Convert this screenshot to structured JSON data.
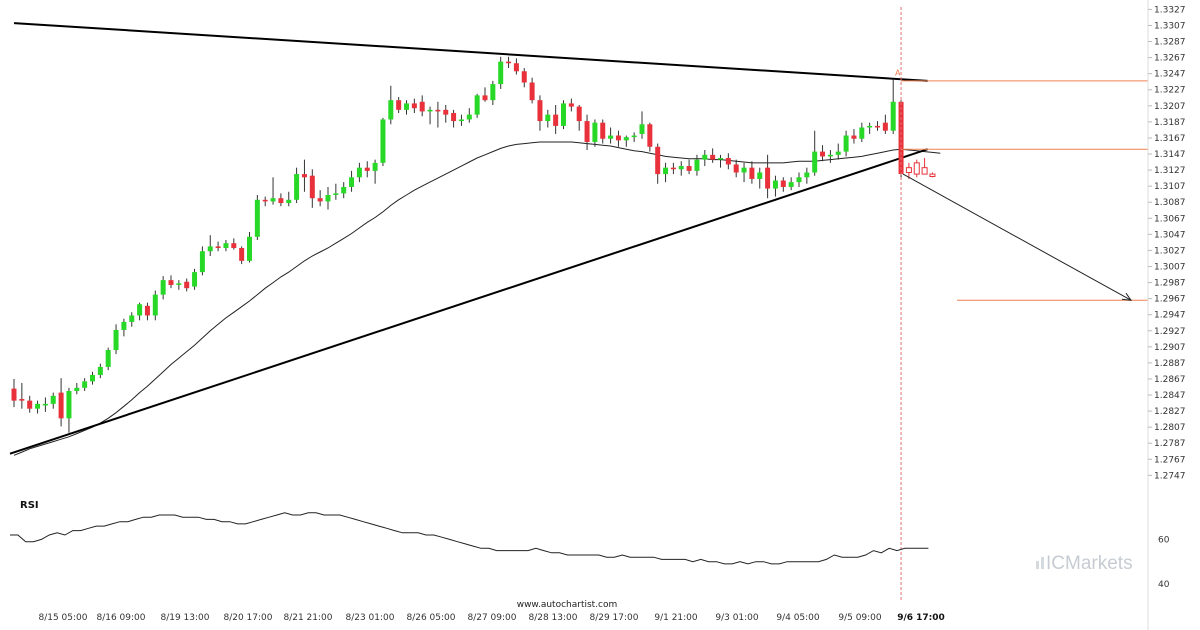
{
  "chart_data": {
    "type": "candlestick",
    "title": "",
    "y_ticks": [
      "1.3327",
      "1.3307",
      "1.3287",
      "1.3267",
      "1.3247",
      "1.3227",
      "1.3207",
      "1.3187",
      "1.3167",
      "1.3147",
      "1.3127",
      "1.3107",
      "1.3087",
      "1.3067",
      "1.3047",
      "1.3027",
      "1.3007",
      "1.2987",
      "1.2967",
      "1.2947",
      "1.2927",
      "1.2907",
      "1.2887",
      "1.2867",
      "1.2847",
      "1.2827",
      "1.2807",
      "1.2787",
      "1.2767",
      "1.2747"
    ],
    "ylim": [
      1.2735,
      1.333
    ],
    "x_ticks": [
      "8/15 05:00",
      "8/16 09:00",
      "8/19 13:00",
      "8/20 17:00",
      "8/21 21:00",
      "8/23 01:00",
      "8/26 05:00",
      "8/27 09:00",
      "8/28 13:00",
      "8/29 17:00",
      "9/1 21:00",
      "9/3 01:00",
      "9/4 05:00",
      "9/5 09:00",
      "9/6 17:00"
    ],
    "highlight_x_tick": "9/6 17:00",
    "candles": [
      {
        "o": 1.2855,
        "h": 1.2867,
        "l": 1.2832,
        "c": 1.284
      },
      {
        "o": 1.2842,
        "h": 1.2862,
        "l": 1.283,
        "c": 1.284
      },
      {
        "o": 1.284,
        "h": 1.2846,
        "l": 1.2825,
        "c": 1.283
      },
      {
        "o": 1.283,
        "h": 1.284,
        "l": 1.2824,
        "c": 1.2836
      },
      {
        "o": 1.2834,
        "h": 1.2844,
        "l": 1.2826,
        "c": 1.2836
      },
      {
        "o": 1.2836,
        "h": 1.285,
        "l": 1.283,
        "c": 1.2846
      },
      {
        "o": 1.285,
        "h": 1.2868,
        "l": 1.2808,
        "c": 1.2818
      },
      {
        "o": 1.2818,
        "h": 1.2856,
        "l": 1.28,
        "c": 1.2852
      },
      {
        "o": 1.2852,
        "h": 1.2862,
        "l": 1.2848,
        "c": 1.2856
      },
      {
        "o": 1.2856,
        "h": 1.2868,
        "l": 1.2852,
        "c": 1.2864
      },
      {
        "o": 1.2864,
        "h": 1.2876,
        "l": 1.286,
        "c": 1.2872
      },
      {
        "o": 1.2872,
        "h": 1.2886,
        "l": 1.2868,
        "c": 1.2882
      },
      {
        "o": 1.2882,
        "h": 1.2906,
        "l": 1.2878,
        "c": 1.2903
      },
      {
        "o": 1.2903,
        "h": 1.2935,
        "l": 1.2898,
        "c": 1.2928
      },
      {
        "o": 1.2928,
        "h": 1.2942,
        "l": 1.292,
        "c": 1.2938
      },
      {
        "o": 1.2938,
        "h": 1.295,
        "l": 1.2932,
        "c": 1.2946
      },
      {
        "o": 1.2946,
        "h": 1.2962,
        "l": 1.294,
        "c": 1.296
      },
      {
        "o": 1.2958,
        "h": 1.2962,
        "l": 1.294,
        "c": 1.2946
      },
      {
        "o": 1.2946,
        "h": 1.2977,
        "l": 1.294,
        "c": 1.2972
      },
      {
        "o": 1.2972,
        "h": 1.2995,
        "l": 1.2966,
        "c": 1.299
      },
      {
        "o": 1.299,
        "h": 1.2996,
        "l": 1.298,
        "c": 1.2984
      },
      {
        "o": 1.2984,
        "h": 1.299,
        "l": 1.2978,
        "c": 1.2986
      },
      {
        "o": 1.2988,
        "h": 1.2992,
        "l": 1.2976,
        "c": 1.298
      },
      {
        "o": 1.2982,
        "h": 1.3004,
        "l": 1.2978,
        "c": 1.3
      },
      {
        "o": 1.3,
        "h": 1.3032,
        "l": 1.2996,
        "c": 1.3026
      },
      {
        "o": 1.3026,
        "h": 1.3046,
        "l": 1.302,
        "c": 1.3032
      },
      {
        "o": 1.3032,
        "h": 1.3038,
        "l": 1.3026,
        "c": 1.303
      },
      {
        "o": 1.303,
        "h": 1.304,
        "l": 1.3026,
        "c": 1.3036
      },
      {
        "o": 1.3036,
        "h": 1.3042,
        "l": 1.3028,
        "c": 1.303
      },
      {
        "o": 1.303,
        "h": 1.3032,
        "l": 1.301,
        "c": 1.3014
      },
      {
        "o": 1.3014,
        "h": 1.305,
        "l": 1.3012,
        "c": 1.3044
      },
      {
        "o": 1.3044,
        "h": 1.3096,
        "l": 1.304,
        "c": 1.309
      },
      {
        "o": 1.309,
        "h": 1.3094,
        "l": 1.3082,
        "c": 1.3088
      },
      {
        "o": 1.3088,
        "h": 1.3118,
        "l": 1.3084,
        "c": 1.3092
      },
      {
        "o": 1.3092,
        "h": 1.3098,
        "l": 1.3082,
        "c": 1.3086
      },
      {
        "o": 1.3086,
        "h": 1.31,
        "l": 1.3082,
        "c": 1.309
      },
      {
        "o": 1.309,
        "h": 1.313,
        "l": 1.3086,
        "c": 1.3122
      },
      {
        "o": 1.3122,
        "h": 1.314,
        "l": 1.31,
        "c": 1.3118
      },
      {
        "o": 1.312,
        "h": 1.3128,
        "l": 1.308,
        "c": 1.3092
      },
      {
        "o": 1.3092,
        "h": 1.3102,
        "l": 1.3082,
        "c": 1.3088
      },
      {
        "o": 1.3088,
        "h": 1.3106,
        "l": 1.3078,
        "c": 1.3096
      },
      {
        "o": 1.3096,
        "h": 1.311,
        "l": 1.309,
        "c": 1.3098
      },
      {
        "o": 1.3098,
        "h": 1.3112,
        "l": 1.3092,
        "c": 1.3106
      },
      {
        "o": 1.3106,
        "h": 1.3126,
        "l": 1.31,
        "c": 1.3118
      },
      {
        "o": 1.3118,
        "h": 1.3136,
        "l": 1.3112,
        "c": 1.313
      },
      {
        "o": 1.313,
        "h": 1.3138,
        "l": 1.3118,
        "c": 1.3126
      },
      {
        "o": 1.3126,
        "h": 1.314,
        "l": 1.311,
        "c": 1.3136
      },
      {
        "o": 1.3136,
        "h": 1.3192,
        "l": 1.3132,
        "c": 1.319
      },
      {
        "o": 1.319,
        "h": 1.3232,
        "l": 1.3184,
        "c": 1.3214
      },
      {
        "o": 1.3214,
        "h": 1.3218,
        "l": 1.3198,
        "c": 1.3202
      },
      {
        "o": 1.3202,
        "h": 1.3214,
        "l": 1.3196,
        "c": 1.321
      },
      {
        "o": 1.321,
        "h": 1.3216,
        "l": 1.3198,
        "c": 1.3204
      },
      {
        "o": 1.3212,
        "h": 1.322,
        "l": 1.3194,
        "c": 1.32
      },
      {
        "o": 1.32,
        "h": 1.3206,
        "l": 1.3184,
        "c": 1.3202
      },
      {
        "o": 1.3202,
        "h": 1.3212,
        "l": 1.318,
        "c": 1.32
      },
      {
        "o": 1.3202,
        "h": 1.3208,
        "l": 1.3186,
        "c": 1.3196
      },
      {
        "o": 1.3198,
        "h": 1.3202,
        "l": 1.318,
        "c": 1.3188
      },
      {
        "o": 1.3188,
        "h": 1.3196,
        "l": 1.3182,
        "c": 1.319
      },
      {
        "o": 1.319,
        "h": 1.3204,
        "l": 1.3186,
        "c": 1.3196
      },
      {
        "o": 1.3196,
        "h": 1.3222,
        "l": 1.3192,
        "c": 1.322
      },
      {
        "o": 1.322,
        "h": 1.323,
        "l": 1.3212,
        "c": 1.3214
      },
      {
        "o": 1.3214,
        "h": 1.3238,
        "l": 1.3208,
        "c": 1.3234
      },
      {
        "o": 1.3234,
        "h": 1.3268,
        "l": 1.3228,
        "c": 1.3262
      },
      {
        "o": 1.3262,
        "h": 1.3268,
        "l": 1.3254,
        "c": 1.326
      },
      {
        "o": 1.326,
        "h": 1.3266,
        "l": 1.3246,
        "c": 1.325
      },
      {
        "o": 1.325,
        "h": 1.3254,
        "l": 1.323,
        "c": 1.3236
      },
      {
        "o": 1.3236,
        "h": 1.3242,
        "l": 1.321,
        "c": 1.3214
      },
      {
        "o": 1.3214,
        "h": 1.322,
        "l": 1.3176,
        "c": 1.3188
      },
      {
        "o": 1.3188,
        "h": 1.3202,
        "l": 1.318,
        "c": 1.3196
      },
      {
        "o": 1.3196,
        "h": 1.3208,
        "l": 1.3172,
        "c": 1.3182
      },
      {
        "o": 1.3182,
        "h": 1.3214,
        "l": 1.3178,
        "c": 1.321
      },
      {
        "o": 1.321,
        "h": 1.3216,
        "l": 1.32,
        "c": 1.3206
      },
      {
        "o": 1.3206,
        "h": 1.3208,
        "l": 1.3176,
        "c": 1.3188
      },
      {
        "o": 1.3188,
        "h": 1.3196,
        "l": 1.3152,
        "c": 1.3162
      },
      {
        "o": 1.3162,
        "h": 1.319,
        "l": 1.3156,
        "c": 1.3186
      },
      {
        "o": 1.3186,
        "h": 1.319,
        "l": 1.316,
        "c": 1.3166
      },
      {
        "o": 1.3166,
        "h": 1.318,
        "l": 1.316,
        "c": 1.317
      },
      {
        "o": 1.317,
        "h": 1.3176,
        "l": 1.3156,
        "c": 1.3164
      },
      {
        "o": 1.3164,
        "h": 1.317,
        "l": 1.3156,
        "c": 1.3168
      },
      {
        "o": 1.3168,
        "h": 1.3174,
        "l": 1.3162,
        "c": 1.317
      },
      {
        "o": 1.3172,
        "h": 1.32,
        "l": 1.3166,
        "c": 1.3184
      },
      {
        "o": 1.3184,
        "h": 1.3186,
        "l": 1.315,
        "c": 1.3156
      },
      {
        "o": 1.3156,
        "h": 1.316,
        "l": 1.311,
        "c": 1.3122
      },
      {
        "o": 1.3122,
        "h": 1.3136,
        "l": 1.3112,
        "c": 1.313
      },
      {
        "o": 1.313,
        "h": 1.3136,
        "l": 1.3122,
        "c": 1.3128
      },
      {
        "o": 1.3128,
        "h": 1.3138,
        "l": 1.312,
        "c": 1.3132
      },
      {
        "o": 1.3132,
        "h": 1.314,
        "l": 1.3122,
        "c": 1.3126
      },
      {
        "o": 1.3126,
        "h": 1.3146,
        "l": 1.312,
        "c": 1.314
      },
      {
        "o": 1.314,
        "h": 1.3152,
        "l": 1.3132,
        "c": 1.3146
      },
      {
        "o": 1.3146,
        "h": 1.3154,
        "l": 1.3136,
        "c": 1.314
      },
      {
        "o": 1.314,
        "h": 1.3146,
        "l": 1.313,
        "c": 1.3142
      },
      {
        "o": 1.3142,
        "h": 1.3148,
        "l": 1.3128,
        "c": 1.3134
      },
      {
        "o": 1.3134,
        "h": 1.314,
        "l": 1.3118,
        "c": 1.3124
      },
      {
        "o": 1.3124,
        "h": 1.3136,
        "l": 1.3112,
        "c": 1.313
      },
      {
        "o": 1.313,
        "h": 1.3138,
        "l": 1.311,
        "c": 1.3116
      },
      {
        "o": 1.3116,
        "h": 1.313,
        "l": 1.3104,
        "c": 1.3124
      },
      {
        "o": 1.313,
        "h": 1.3146,
        "l": 1.3092,
        "c": 1.3104
      },
      {
        "o": 1.3104,
        "h": 1.312,
        "l": 1.3094,
        "c": 1.3114
      },
      {
        "o": 1.3114,
        "h": 1.3118,
        "l": 1.31,
        "c": 1.3106
      },
      {
        "o": 1.3106,
        "h": 1.3118,
        "l": 1.3102,
        "c": 1.3112
      },
      {
        "o": 1.3112,
        "h": 1.3124,
        "l": 1.3106,
        "c": 1.3118
      },
      {
        "o": 1.3118,
        "h": 1.313,
        "l": 1.311,
        "c": 1.3124
      },
      {
        "o": 1.3124,
        "h": 1.3176,
        "l": 1.312,
        "c": 1.315
      },
      {
        "o": 1.315,
        "h": 1.3158,
        "l": 1.3138,
        "c": 1.3144
      },
      {
        "o": 1.3144,
        "h": 1.3152,
        "l": 1.3136,
        "c": 1.3146
      },
      {
        "o": 1.3146,
        "h": 1.316,
        "l": 1.314,
        "c": 1.315
      },
      {
        "o": 1.315,
        "h": 1.3176,
        "l": 1.3144,
        "c": 1.317
      },
      {
        "o": 1.317,
        "h": 1.3178,
        "l": 1.316,
        "c": 1.3166
      },
      {
        "o": 1.3166,
        "h": 1.3186,
        "l": 1.3162,
        "c": 1.318
      },
      {
        "o": 1.318,
        "h": 1.3186,
        "l": 1.3172,
        "c": 1.3182
      },
      {
        "o": 1.3182,
        "h": 1.3188,
        "l": 1.3176,
        "c": 1.318
      },
      {
        "o": 1.3186,
        "h": 1.3196,
        "l": 1.3172,
        "c": 1.3176
      },
      {
        "o": 1.3176,
        "h": 1.324,
        "l": 1.3172,
        "c": 1.3212
      },
      {
        "o": 1.3212,
        "h": 1.3214,
        "l": 1.3115,
        "c": 1.3122
      },
      {
        "o": 1.3124,
        "h": 1.3136,
        "l": 1.3116,
        "c": 1.313,
        "hollow": true
      },
      {
        "o": 1.3122,
        "h": 1.314,
        "l": 1.3118,
        "c": 1.3136,
        "hollow": true
      },
      {
        "o": 1.313,
        "h": 1.3142,
        "l": 1.3122,
        "c": 1.3122,
        "hollow": true
      },
      {
        "o": 1.3122,
        "h": 1.3124,
        "l": 1.3118,
        "c": 1.3119,
        "hollow": true
      }
    ],
    "ma": [
      1.2772,
      1.2776,
      1.278,
      1.2783,
      1.2786,
      1.2789,
      1.2792,
      1.2795,
      1.2799,
      1.2803,
      1.2807,
      1.2812,
      1.2818,
      1.2825,
      1.2833,
      1.2841,
      1.285,
      1.2858,
      1.2867,
      1.2876,
      1.2885,
      1.2893,
      1.2901,
      1.2909,
      1.2918,
      1.2927,
      1.2935,
      1.2943,
      1.295,
      1.2957,
      1.2964,
      1.2972,
      1.298,
      1.2987,
      1.2994,
      1.3,
      1.3007,
      1.3014,
      1.302,
      1.3025,
      1.303,
      1.3036,
      1.3042,
      1.3048,
      1.3055,
      1.3062,
      1.3068,
      1.3075,
      1.3083,
      1.309,
      1.3096,
      1.3102,
      1.3107,
      1.3112,
      1.3117,
      1.3122,
      1.3127,
      1.3132,
      1.3137,
      1.3142,
      1.3146,
      1.315,
      1.3154,
      1.3157,
      1.3159,
      1.316,
      1.3161,
      1.3162,
      1.3162,
      1.3162,
      1.3162,
      1.3162,
      1.3161,
      1.316,
      1.3159,
      1.3158,
      1.3157,
      1.3155,
      1.3153,
      1.3151,
      1.315,
      1.3148,
      1.3146,
      1.3144,
      1.3143,
      1.3142,
      1.3141,
      1.3141,
      1.3141,
      1.314,
      1.314,
      1.3139,
      1.3138,
      1.3137,
      1.3136,
      1.3136,
      1.3136,
      1.3136,
      1.3136,
      1.3137,
      1.3138,
      1.3138,
      1.3138,
      1.3139,
      1.314,
      1.3141,
      1.3142,
      1.3143,
      1.3144,
      1.3146,
      1.3148,
      1.315,
      1.3152,
      1.3153,
      1.3152,
      1.3151,
      1.315,
      1.3149,
      1.3148
    ],
    "resistance_line": [
      [
        1.331,
        0
      ],
      [
        1.3238,
        116
      ]
    ],
    "support_line": [
      [
        1.2774,
        0
      ],
      [
        1.3153,
        116
      ]
    ],
    "target_level": 1.2965,
    "upper_level": 1.3238,
    "lower_level": 1.3153,
    "rsi": {
      "label": "RSI",
      "y_ticks": [
        "60",
        "40"
      ],
      "ylim": [
        35,
        80
      ],
      "values": [
        62,
        62,
        59,
        59,
        60,
        62,
        63,
        62,
        64,
        64,
        65,
        66,
        66,
        67,
        68,
        68,
        69,
        70,
        70,
        71,
        71,
        71,
        70,
        70,
        70,
        69,
        69,
        68,
        68,
        67,
        67,
        68,
        69,
        70,
        71,
        72,
        71,
        71,
        72,
        72,
        71,
        71,
        71,
        70,
        69,
        68,
        67,
        66,
        65,
        64,
        63,
        63,
        63,
        62,
        62,
        61,
        60,
        59,
        58,
        57,
        56,
        56,
        55,
        55,
        55,
        55,
        55,
        56,
        55,
        54,
        54,
        53,
        53,
        53,
        53,
        53,
        52,
        52,
        53,
        52,
        52,
        52,
        52,
        51,
        51,
        51,
        51,
        50,
        51,
        50,
        50,
        49,
        49,
        50,
        49,
        50,
        50,
        49,
        49,
        50,
        50,
        50,
        50,
        50,
        51,
        53,
        52,
        52,
        52,
        53,
        55,
        54,
        56,
        55,
        56,
        56,
        56,
        56
      ],
      "x_positions": "aligned_with_candles"
    },
    "credit": "www.autochartist.com",
    "brand": "ICMarkets",
    "marker": "A"
  }
}
